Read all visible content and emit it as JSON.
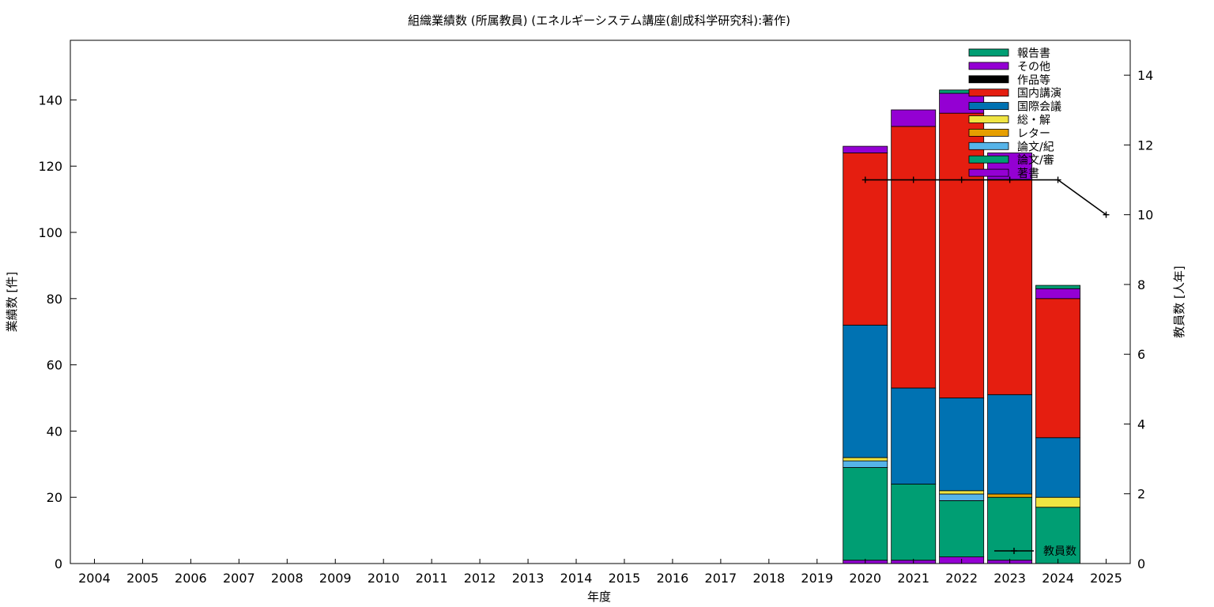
{
  "chart_data": {
    "type": "bar",
    "stacked": true,
    "title": "組織業績数 (所属教員) (エネルギーシステム講座(創成科学研究科):著作)",
    "xlabel": "年度",
    "ylabel": "業績数 [件]",
    "y2label": "教員数 [人年]",
    "ylim": [
      0,
      158
    ],
    "y2lim": [
      0,
      15
    ],
    "yticks": [
      0,
      20,
      40,
      60,
      80,
      100,
      120,
      140
    ],
    "y2ticks": [
      0,
      2,
      4,
      6,
      8,
      10,
      12,
      14
    ],
    "grid": false,
    "legend_position": "top-right",
    "categories": [
      "2004",
      "2005",
      "2006",
      "2007",
      "2008",
      "2009",
      "2010",
      "2011",
      "2012",
      "2013",
      "2014",
      "2015",
      "2016",
      "2017",
      "2018",
      "2019",
      "2020",
      "2021",
      "2022",
      "2023",
      "2024",
      "2025"
    ],
    "series": [
      {
        "name": "著書",
        "color": "#9400d3",
        "values": [
          0,
          0,
          0,
          0,
          0,
          0,
          0,
          0,
          0,
          0,
          0,
          0,
          0,
          0,
          0,
          0,
          1,
          1,
          2,
          1,
          0,
          0
        ]
      },
      {
        "name": "論文/審",
        "color": "#009e73",
        "values": [
          0,
          0,
          0,
          0,
          0,
          0,
          0,
          0,
          0,
          0,
          0,
          0,
          0,
          0,
          0,
          0,
          28,
          23,
          17,
          19,
          17,
          0
        ]
      },
      {
        "name": "論文/紀",
        "color": "#56b4e9",
        "values": [
          0,
          0,
          0,
          0,
          0,
          0,
          0,
          0,
          0,
          0,
          0,
          0,
          0,
          0,
          0,
          0,
          2,
          0,
          2,
          0,
          0,
          0
        ]
      },
      {
        "name": "レター",
        "color": "#e69f00",
        "values": [
          0,
          0,
          0,
          0,
          0,
          0,
          0,
          0,
          0,
          0,
          0,
          0,
          0,
          0,
          0,
          0,
          0,
          0,
          0,
          1,
          0,
          0
        ]
      },
      {
        "name": "総・解",
        "color": "#f0e442",
        "values": [
          0,
          0,
          0,
          0,
          0,
          0,
          0,
          0,
          0,
          0,
          0,
          0,
          0,
          0,
          0,
          0,
          1,
          0,
          1,
          0,
          3,
          0
        ]
      },
      {
        "name": "国際会議",
        "color": "#0072b2",
        "values": [
          0,
          0,
          0,
          0,
          0,
          0,
          0,
          0,
          0,
          0,
          0,
          0,
          0,
          0,
          0,
          0,
          40,
          29,
          28,
          30,
          18,
          0
        ]
      },
      {
        "name": "国内講演",
        "color": "#e51e10",
        "values": [
          0,
          0,
          0,
          0,
          0,
          0,
          0,
          0,
          0,
          0,
          0,
          0,
          0,
          0,
          0,
          0,
          52,
          79,
          86,
          65,
          42,
          0
        ]
      },
      {
        "name": "作品等",
        "color": "#000000",
        "values": [
          0,
          0,
          0,
          0,
          0,
          0,
          0,
          0,
          0,
          0,
          0,
          0,
          0,
          0,
          0,
          0,
          0,
          0,
          0,
          0,
          0,
          0
        ]
      },
      {
        "name": "その他",
        "color": "#9400d3",
        "values": [
          0,
          0,
          0,
          0,
          0,
          0,
          0,
          0,
          0,
          0,
          0,
          0,
          0,
          0,
          0,
          0,
          2,
          5,
          6,
          8,
          3,
          0
        ]
      },
      {
        "name": "報告書",
        "color": "#009e73",
        "values": [
          0,
          0,
          0,
          0,
          0,
          0,
          0,
          0,
          0,
          0,
          0,
          0,
          0,
          0,
          0,
          0,
          0,
          0,
          1,
          0,
          1,
          0
        ]
      }
    ],
    "line_series": {
      "name": "教員数",
      "axis": "y2",
      "color": "#000000",
      "x": [
        "2020",
        "2021",
        "2022",
        "2023",
        "2024",
        "2025"
      ],
      "values": [
        11,
        11,
        11,
        11,
        11,
        10
      ]
    },
    "legend_order": [
      "報告書",
      "その他",
      "作品等",
      "国内講演",
      "国際会議",
      "総・解",
      "レター",
      "論文/紀",
      "論文/審",
      "著書"
    ]
  }
}
